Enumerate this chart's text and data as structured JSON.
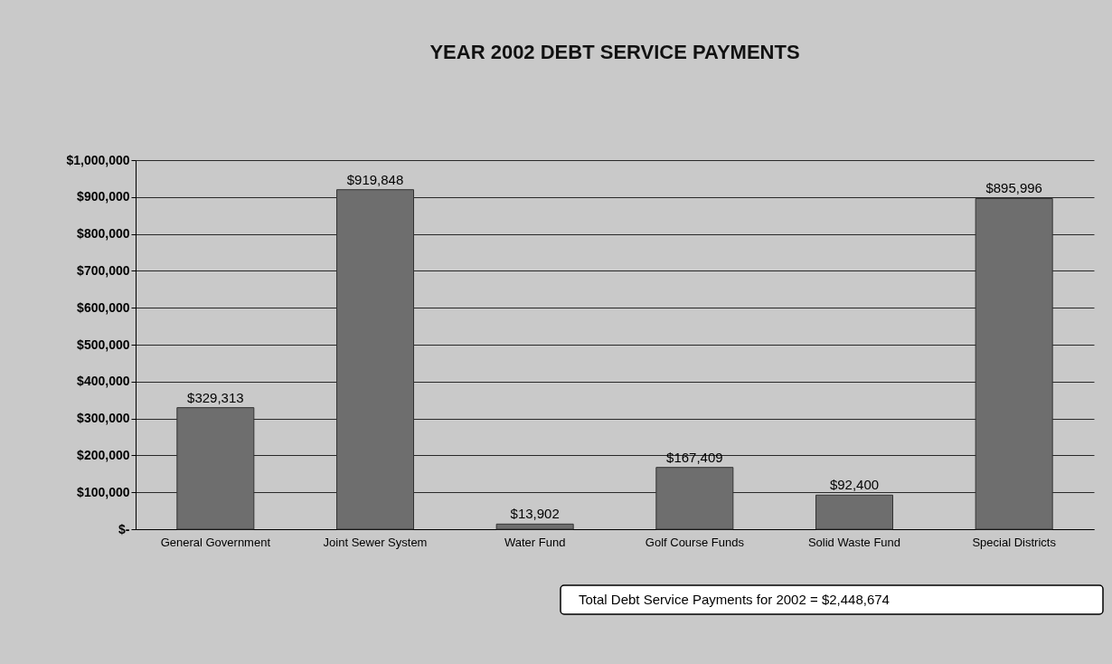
{
  "chart_data": {
    "type": "bar",
    "title": "YEAR 2002 DEBT SERVICE PAYMENTS",
    "categories": [
      "General Government",
      "Joint Sewer System",
      "Water Fund",
      "Golf Course Funds",
      "Solid Waste Fund",
      "Special Districts"
    ],
    "values": [
      329313,
      919848,
      13902,
      167409,
      92400,
      895996
    ],
    "value_labels": [
      "$329,313",
      "$919,848",
      "$13,902",
      "$167,409",
      "$92,400",
      "$895,996"
    ],
    "color": "#6e6e6e",
    "ylim": [
      0,
      1000000
    ],
    "yticks": [
      {
        "value": 0,
        "label": "$-"
      },
      {
        "value": 100000,
        "label": "$100,000"
      },
      {
        "value": 200000,
        "label": "$200,000"
      },
      {
        "value": 300000,
        "label": "$300,000"
      },
      {
        "value": 400000,
        "label": "$400,000"
      },
      {
        "value": 500000,
        "label": "$500,000"
      },
      {
        "value": 600000,
        "label": "$600,000"
      },
      {
        "value": 700000,
        "label": "$700,000"
      },
      {
        "value": 800000,
        "label": "$800,000"
      },
      {
        "value": 900000,
        "label": "$900,000"
      },
      {
        "value": 1000000,
        "label": "$1,000,000"
      }
    ],
    "grid": "y",
    "annotations": [
      "Total Debt Service Payments for 2002 = $2,448,674"
    ]
  }
}
